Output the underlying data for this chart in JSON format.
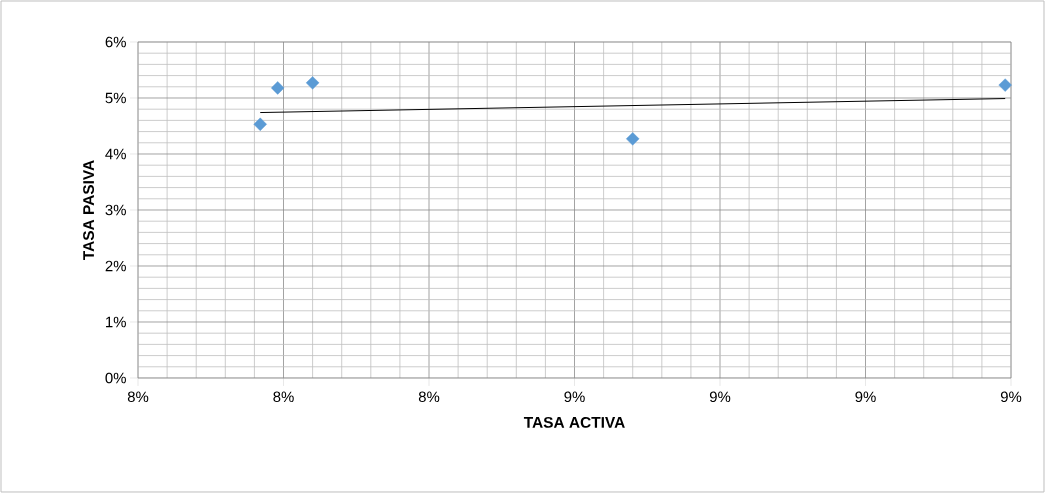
{
  "chart_data": {
    "type": "scatter",
    "xlabel": "TASA ACTIVA",
    "ylabel": "TASA PASIVA",
    "xlim": [
      7.75,
      9.25
    ],
    "ylim": [
      0,
      6
    ],
    "xticks": [
      {
        "value": 7.75,
        "label": "8%"
      },
      {
        "value": 8.0,
        "label": "8%"
      },
      {
        "value": 8.25,
        "label": "8%"
      },
      {
        "value": 8.5,
        "label": "9%"
      },
      {
        "value": 8.75,
        "label": "9%"
      },
      {
        "value": 9.0,
        "label": "9%"
      },
      {
        "value": 9.25,
        "label": "9%"
      }
    ],
    "yticks": [
      {
        "value": 0,
        "label": "0%"
      },
      {
        "value": 1,
        "label": "1%"
      },
      {
        "value": 2,
        "label": "2%"
      },
      {
        "value": 3,
        "label": "3%"
      },
      {
        "value": 4,
        "label": "4%"
      },
      {
        "value": 5,
        "label": "5%"
      },
      {
        "value": 6,
        "label": "6%"
      }
    ],
    "grid": true,
    "series": [
      {
        "marker": "diamond",
        "color": "#5b9bd5",
        "x": [
          7.96,
          7.99,
          8.05,
          8.6,
          9.24
        ],
        "values": [
          4.53,
          5.18,
          5.27,
          4.27,
          5.23
        ]
      },
      {
        "type": "line",
        "marker": "none",
        "color": "#000000",
        "x": [
          7.96,
          9.24
        ],
        "values": [
          4.74,
          4.99
        ]
      }
    ]
  }
}
